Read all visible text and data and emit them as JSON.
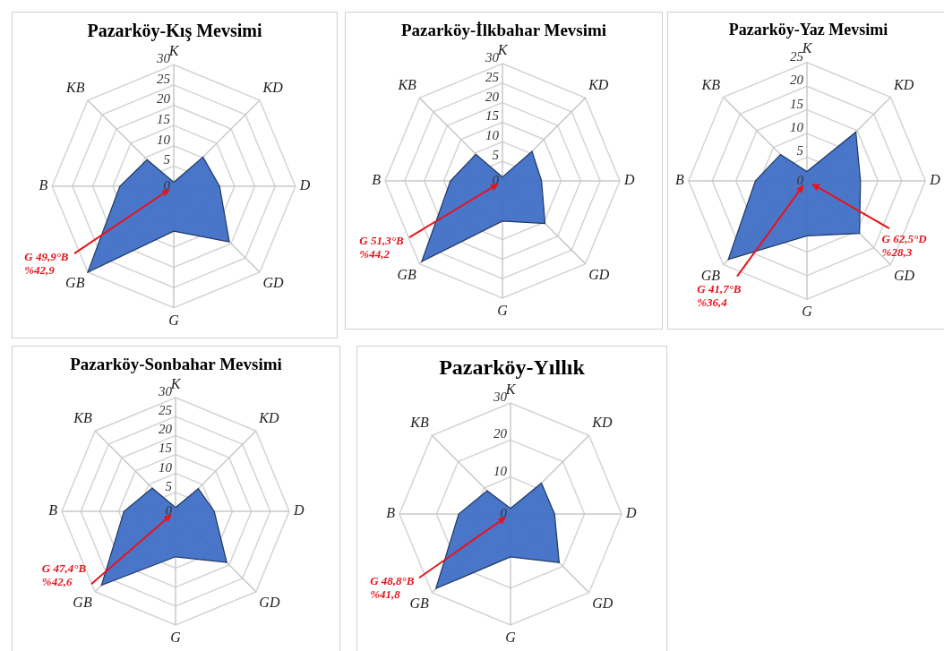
{
  "chart_data": [
    {
      "type": "radar",
      "title": "Pazarköy-Kış Mevsimi",
      "categories": [
        "K",
        "KD",
        "D",
        "GD",
        "G",
        "GB",
        "B",
        "KB"
      ],
      "marker": "none",
      "grid": true,
      "ylim": [
        0,
        30
      ],
      "yticks": [
        0,
        5,
        10,
        15,
        20,
        25,
        30
      ],
      "series": [
        {
          "color": "#3f6fc6",
          "values": [
            1,
            10.2,
            11.3,
            19.4,
            11.1,
            30,
            13.3,
            9.3
          ]
        }
      ],
      "annotations": [
        "G 49,9°B",
        "%42,9"
      ]
    },
    {
      "type": "radar",
      "title": "Pazarköy-İlkbahar Mevsimi",
      "categories": [
        "K",
        "KD",
        "D",
        "GD",
        "G",
        "GB",
        "B",
        "KB"
      ],
      "marker": "none",
      "grid": true,
      "ylim": [
        0,
        30
      ],
      "yticks": [
        0,
        5,
        10,
        15,
        20,
        25,
        30
      ],
      "series": [
        {
          "color": "#3f6fc6",
          "values": [
            1,
            10.7,
            10,
            15.4,
            10.3,
            29.2,
            13.3,
            9.6
          ]
        }
      ],
      "annotations": [
        "G 51,3°B",
        "%44,2"
      ]
    },
    {
      "type": "radar",
      "title": "Pazarköy-Yaz Mevsimi",
      "categories": [
        "K",
        "KD",
        "D",
        "GD",
        "G",
        "GB",
        "B",
        "KB"
      ],
      "marker": "none",
      "grid": true,
      "ylim": [
        0,
        25
      ],
      "yticks": [
        0,
        5,
        10,
        15,
        20,
        25
      ],
      "series": [
        {
          "color": "#3f6fc6",
          "values": [
            2,
            14.6,
            11.3,
            15.7,
            11.6,
            23.5,
            10.9,
            7.9
          ]
        }
      ],
      "annotations": [
        "G 41,7°B",
        "%36,4",
        "G 62,5°D",
        "%28,3"
      ]
    },
    {
      "type": "radar",
      "title": "Pazarköy-Sonbahar Mevsimi",
      "categories": [
        "K",
        "KD",
        "D",
        "GD",
        "G",
        "GB",
        "B",
        "KB"
      ],
      "marker": "none",
      "grid": true,
      "ylim": [
        0,
        30
      ],
      "yticks": [
        0,
        5,
        10,
        15,
        20,
        25,
        30
      ],
      "series": [
        {
          "color": "#3f6fc6",
          "values": [
            1,
            8.5,
            10.2,
            19.1,
            12,
            27.6,
            13.6,
            8.7
          ]
        }
      ],
      "annotations": [
        "G 47,4°B",
        "%42,6"
      ]
    },
    {
      "type": "radar",
      "title": "Pazarköy-Yıllık",
      "categories": [
        "K",
        "KD",
        "D",
        "GD",
        "G",
        "GB",
        "B",
        "KB"
      ],
      "marker": "none",
      "grid": true,
      "ylim": [
        0,
        30
      ],
      "yticks": [
        0,
        10,
        20,
        30
      ],
      "series": [
        {
          "color": "#3f6fc6",
          "values": [
            1.5,
            11.8,
            11.9,
            18.6,
            11.6,
            28.5,
            14,
            8.9
          ]
        }
      ],
      "annotations": [
        "G 48,8°B",
        "%41,8"
      ]
    }
  ]
}
